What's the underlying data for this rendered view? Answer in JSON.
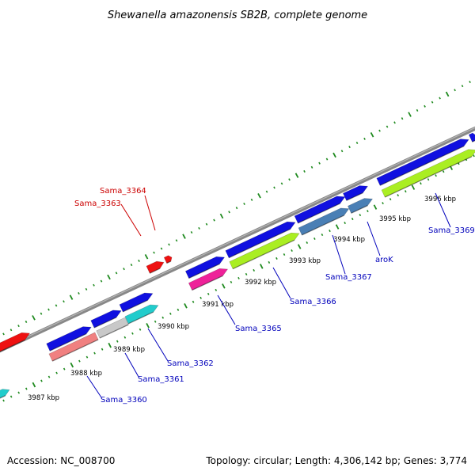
{
  "title": "Shewanella amazonensis SB2B, complete genome",
  "footer": {
    "accession": "Accession: NC_008700",
    "summary": "Topology: circular; Length: 4,306,142 bp; Genes: 3,774"
  },
  "colors": {
    "backbone": "#8c8c8c",
    "ticks": "#1f8a1f",
    "forward_gene": "#1010e0",
    "red_gene": "#ee1111",
    "green_gene": "#aaee22",
    "steel_gene": "#4a7fb5",
    "pink_gene": "#ee2299",
    "salmon_gene": "#f08080",
    "gray_gene": "#c8c8c8",
    "cyan_gene": "#22cccc",
    "label_blue": "#0000bb",
    "label_red": "#cc0000"
  },
  "scale_labels": [
    "3987 kbp",
    "3988 kbp",
    "3989 kbp",
    "3990 kbp",
    "3991 kbp",
    "3992 kbp",
    "3993 kbp",
    "3994 kbp",
    "3995 kbp",
    "3996 kbp"
  ],
  "gene_labels": [
    {
      "text": "Sama_3360",
      "color": "label_blue"
    },
    {
      "text": "Sama_3361",
      "color": "label_blue"
    },
    {
      "text": "Sama_3362",
      "color": "label_blue"
    },
    {
      "text": "Sama_3363",
      "color": "label_red"
    },
    {
      "text": "Sama_3364",
      "color": "label_red"
    },
    {
      "text": "Sama_3365",
      "color": "label_blue"
    },
    {
      "text": "Sama_3366",
      "color": "label_blue"
    },
    {
      "text": "Sama_3367",
      "color": "label_blue"
    },
    {
      "text": "aroK",
      "color": "label_blue"
    },
    {
      "text": "Sama_3369",
      "color": "label_blue"
    }
  ]
}
